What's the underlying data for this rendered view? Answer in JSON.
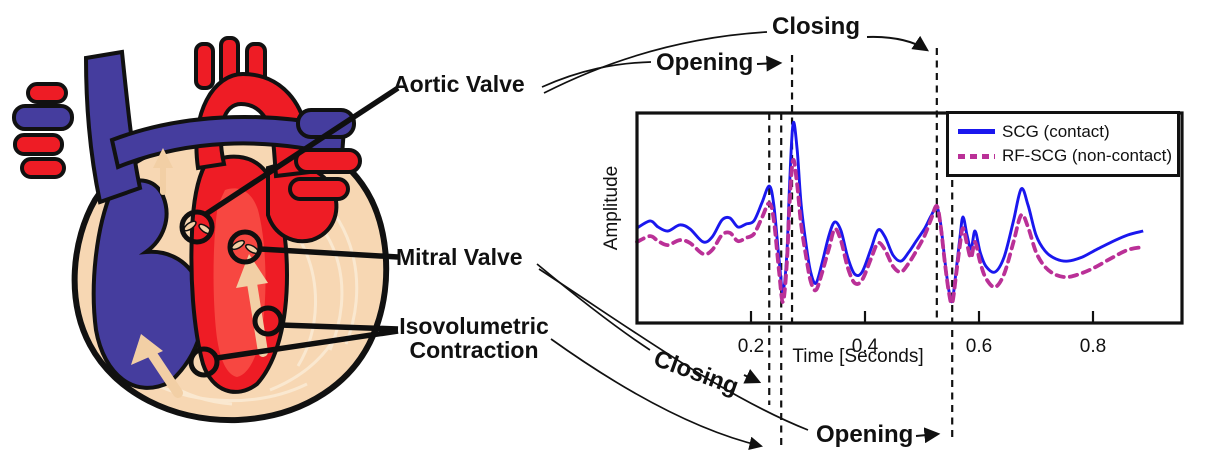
{
  "colors": {
    "scg_blue": "#1A17EE",
    "rf_magenta": "#BA3097",
    "heart_red": "#EE1C25",
    "heart_red_light": "#FA554B",
    "heart_blue": "#453D9E",
    "heart_peach": "#F7D7B3",
    "heart_peach_light": "#F2CFA5",
    "heart_texture": "#FAE8D0",
    "ink": "#111111"
  },
  "heart_panel": {
    "labels": {
      "aortic_valve": "Aortic Valve",
      "mitral_valve": "Mitral Valve",
      "isovolumetric_contraction": "Isovolumetric Contraction"
    }
  },
  "annotations": {
    "aortic_opening": "Opening",
    "aortic_closing": "Closing",
    "mitral_closing": "Closing",
    "mitral_opening": "Opening"
  },
  "chart_data": {
    "type": "line",
    "xlabel": "Time [Seconds]",
    "ylabel": "Amplitude",
    "xticks": [
      0.2,
      0.4,
      0.6,
      0.8
    ],
    "xtick_labels": [
      "0.2",
      "0.4",
      "0.6",
      "0.8"
    ],
    "xlim": [
      0,
      0.96
    ],
    "ylim": [
      0,
      1
    ],
    "grid": false,
    "legend_position": "top-right",
    "series": [
      {
        "name": "SCG (contact)",
        "color": "#1A17EE",
        "style": "solid",
        "points": [
          [
            0.0,
            0.452
          ],
          [
            0.023,
            0.486
          ],
          [
            0.037,
            0.457
          ],
          [
            0.054,
            0.438
          ],
          [
            0.075,
            0.467
          ],
          [
            0.093,
            0.448
          ],
          [
            0.116,
            0.386
          ],
          [
            0.132,
            0.41
          ],
          [
            0.149,
            0.49
          ],
          [
            0.163,
            0.5
          ],
          [
            0.177,
            0.457
          ],
          [
            0.191,
            0.471
          ],
          [
            0.205,
            0.486
          ],
          [
            0.219,
            0.571
          ],
          [
            0.232,
            0.652
          ],
          [
            0.24,
            0.562
          ],
          [
            0.249,
            0.31
          ],
          [
            0.256,
            0.148
          ],
          [
            0.263,
            0.333
          ],
          [
            0.268,
            0.681
          ],
          [
            0.274,
            0.952
          ],
          [
            0.281,
            0.824
          ],
          [
            0.288,
            0.562
          ],
          [
            0.297,
            0.367
          ],
          [
            0.305,
            0.238
          ],
          [
            0.314,
            0.19
          ],
          [
            0.325,
            0.29
          ],
          [
            0.337,
            0.419
          ],
          [
            0.347,
            0.481
          ],
          [
            0.358,
            0.438
          ],
          [
            0.37,
            0.31
          ],
          [
            0.382,
            0.233
          ],
          [
            0.395,
            0.243
          ],
          [
            0.411,
            0.357
          ],
          [
            0.423,
            0.443
          ],
          [
            0.435,
            0.41
          ],
          [
            0.449,
            0.324
          ],
          [
            0.463,
            0.295
          ],
          [
            0.477,
            0.338
          ],
          [
            0.491,
            0.395
          ],
          [
            0.505,
            0.452
          ],
          [
            0.516,
            0.51
          ],
          [
            0.526,
            0.552
          ],
          [
            0.533,
            0.467
          ],
          [
            0.54,
            0.3
          ],
          [
            0.547,
            0.157
          ],
          [
            0.553,
            0.105
          ],
          [
            0.56,
            0.252
          ],
          [
            0.567,
            0.419
          ],
          [
            0.572,
            0.505
          ],
          [
            0.579,
            0.419
          ],
          [
            0.586,
            0.352
          ],
          [
            0.593,
            0.438
          ],
          [
            0.602,
            0.338
          ],
          [
            0.612,
            0.271
          ],
          [
            0.628,
            0.243
          ],
          [
            0.644,
            0.314
          ],
          [
            0.66,
            0.481
          ],
          [
            0.674,
            0.638
          ],
          [
            0.686,
            0.562
          ],
          [
            0.7,
            0.419
          ],
          [
            0.716,
            0.343
          ],
          [
            0.735,
            0.305
          ],
          [
            0.756,
            0.295
          ],
          [
            0.781,
            0.314
          ],
          [
            0.805,
            0.348
          ],
          [
            0.833,
            0.386
          ],
          [
            0.861,
            0.419
          ],
          [
            0.888,
            0.438
          ]
        ]
      },
      {
        "name": "RF-SCG (non-contact)",
        "color": "#BA3097",
        "style": "dashed",
        "points": [
          [
            0.0,
            0.386
          ],
          [
            0.023,
            0.414
          ],
          [
            0.037,
            0.39
          ],
          [
            0.054,
            0.371
          ],
          [
            0.075,
            0.395
          ],
          [
            0.093,
            0.381
          ],
          [
            0.116,
            0.329
          ],
          [
            0.132,
            0.348
          ],
          [
            0.149,
            0.419
          ],
          [
            0.163,
            0.429
          ],
          [
            0.177,
            0.39
          ],
          [
            0.191,
            0.405
          ],
          [
            0.205,
            0.424
          ],
          [
            0.219,
            0.5
          ],
          [
            0.232,
            0.571
          ],
          [
            0.24,
            0.49
          ],
          [
            0.249,
            0.252
          ],
          [
            0.256,
            0.1
          ],
          [
            0.263,
            0.29
          ],
          [
            0.268,
            0.586
          ],
          [
            0.274,
            0.776
          ],
          [
            0.281,
            0.657
          ],
          [
            0.288,
            0.467
          ],
          [
            0.297,
            0.31
          ],
          [
            0.305,
            0.195
          ],
          [
            0.314,
            0.157
          ],
          [
            0.325,
            0.243
          ],
          [
            0.337,
            0.357
          ],
          [
            0.347,
            0.448
          ],
          [
            0.358,
            0.39
          ],
          [
            0.37,
            0.262
          ],
          [
            0.382,
            0.19
          ],
          [
            0.395,
            0.205
          ],
          [
            0.411,
            0.31
          ],
          [
            0.423,
            0.381
          ],
          [
            0.435,
            0.348
          ],
          [
            0.449,
            0.271
          ],
          [
            0.463,
            0.243
          ],
          [
            0.477,
            0.286
          ],
          [
            0.491,
            0.348
          ],
          [
            0.505,
            0.419
          ],
          [
            0.516,
            0.495
          ],
          [
            0.526,
            0.557
          ],
          [
            0.533,
            0.457
          ],
          [
            0.54,
            0.29
          ],
          [
            0.547,
            0.148
          ],
          [
            0.553,
            0.095
          ],
          [
            0.56,
            0.233
          ],
          [
            0.567,
            0.381
          ],
          [
            0.572,
            0.452
          ],
          [
            0.579,
            0.376
          ],
          [
            0.586,
            0.31
          ],
          [
            0.593,
            0.386
          ],
          [
            0.602,
            0.29
          ],
          [
            0.612,
            0.214
          ],
          [
            0.628,
            0.171
          ],
          [
            0.644,
            0.233
          ],
          [
            0.66,
            0.381
          ],
          [
            0.674,
            0.514
          ],
          [
            0.686,
            0.457
          ],
          [
            0.7,
            0.338
          ],
          [
            0.716,
            0.267
          ],
          [
            0.735,
            0.229
          ],
          [
            0.756,
            0.219
          ],
          [
            0.781,
            0.238
          ],
          [
            0.805,
            0.267
          ],
          [
            0.833,
            0.31
          ],
          [
            0.861,
            0.348
          ],
          [
            0.888,
            0.362
          ]
        ]
      }
    ],
    "event_lines": [
      {
        "id": "mitral-closing-line",
        "t": 0.232
      },
      {
        "id": "isovolumetric-line",
        "t": 0.253
      },
      {
        "id": "aortic-opening-line",
        "t": 0.272
      },
      {
        "id": "aortic-closing-line",
        "t": 0.526
      },
      {
        "id": "mitral-opening-line",
        "t": 0.553
      }
    ]
  }
}
